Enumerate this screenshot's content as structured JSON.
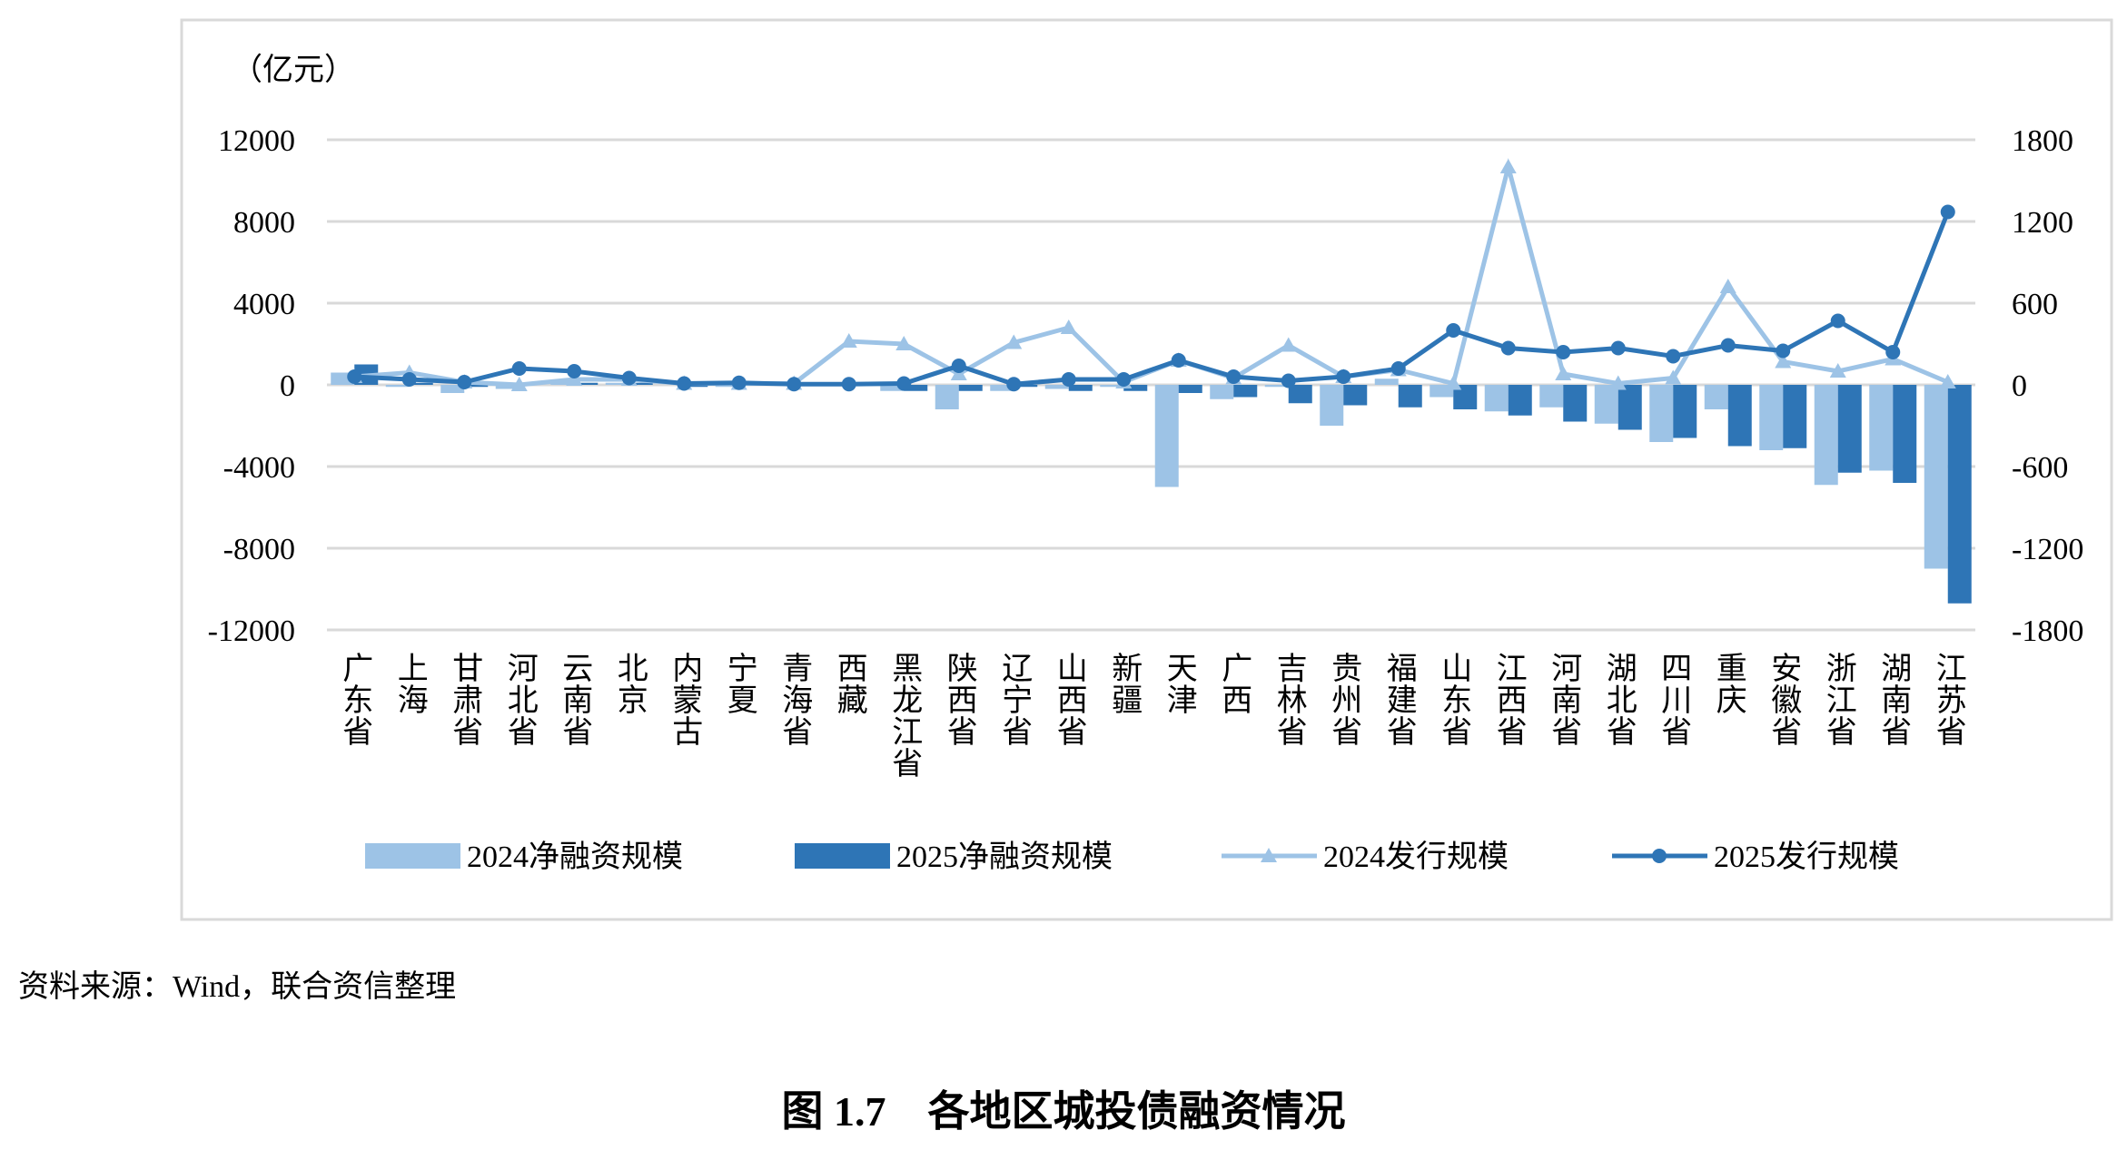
{
  "chart_data": {
    "type": "bar_line",
    "y_unit_label": "（亿元）",
    "categories": [
      "广东省",
      "上海",
      "甘肃省",
      "河北省",
      "云南省",
      "北京",
      "内蒙古",
      "宁夏",
      "青海省",
      "西藏",
      "黑龙江省",
      "陕西省",
      "辽宁省",
      "山西省",
      "新疆",
      "天津",
      "广西",
      "吉林省",
      "贵州省",
      "福建省",
      "山东省",
      "江西省",
      "河南省",
      "湖北省",
      "四川省",
      "重庆",
      "安徽省",
      "浙江省",
      "湖南省",
      "江苏省"
    ],
    "series": [
      {
        "name": "2024净融资规模",
        "type": "bar",
        "color": "#9dc3e6",
        "values": [
          600,
          -100,
          -400,
          -200,
          200,
          100,
          0,
          -100,
          0,
          0,
          -300,
          -1200,
          -300,
          -200,
          -100,
          -5000,
          -700,
          -100,
          -2000,
          300,
          -600,
          -1300,
          -1100,
          -1900,
          -2800,
          -1200,
          -3200,
          -4900,
          -4200,
          -9000
        ]
      },
      {
        "name": "2025净融资规模",
        "type": "bar",
        "color": "#2e75b6",
        "values": [
          1000,
          100,
          -100,
          0,
          100,
          100,
          -100,
          0,
          0,
          0,
          -300,
          -300,
          -100,
          -300,
          -300,
          -400,
          -600,
          -900,
          -1000,
          -1100,
          -1200,
          -1500,
          -1800,
          -2200,
          -2600,
          -3000,
          -3100,
          -4300,
          -4800,
          -10700
        ]
      },
      {
        "name": "2024发行规模",
        "type": "line",
        "marker": "triangle",
        "axis": "y2",
        "color": "#9dc3e6",
        "values": [
          60,
          90,
          20,
          0,
          40,
          40,
          10,
          10,
          10,
          320,
          300,
          80,
          310,
          420,
          20,
          180,
          50,
          290,
          60,
          110,
          10,
          1600,
          80,
          10,
          50,
          720,
          170,
          100,
          190,
          20
        ]
      },
      {
        "name": "2025发行规模",
        "type": "line",
        "marker": "circle",
        "axis": "y2",
        "color": "#2e75b6",
        "values": [
          60,
          40,
          20,
          120,
          100,
          50,
          10,
          15,
          5,
          5,
          10,
          140,
          5,
          40,
          40,
          180,
          60,
          30,
          60,
          120,
          400,
          270,
          240,
          270,
          210,
          290,
          250,
          470,
          240,
          1270
        ]
      }
    ],
    "ylim": [
      -12000,
      12000
    ],
    "yticks": [
      -12000,
      -8000,
      -4000,
      0,
      4000,
      8000,
      12000
    ],
    "y2lim": [
      -1800,
      1800
    ],
    "y2ticks": [
      -1800,
      -1200,
      -600,
      0,
      600,
      1200,
      1800
    ],
    "grid": true
  },
  "source": "资料来源：Wind，联合资信整理",
  "caption": "图 1.7　各地区城投债融资情况"
}
